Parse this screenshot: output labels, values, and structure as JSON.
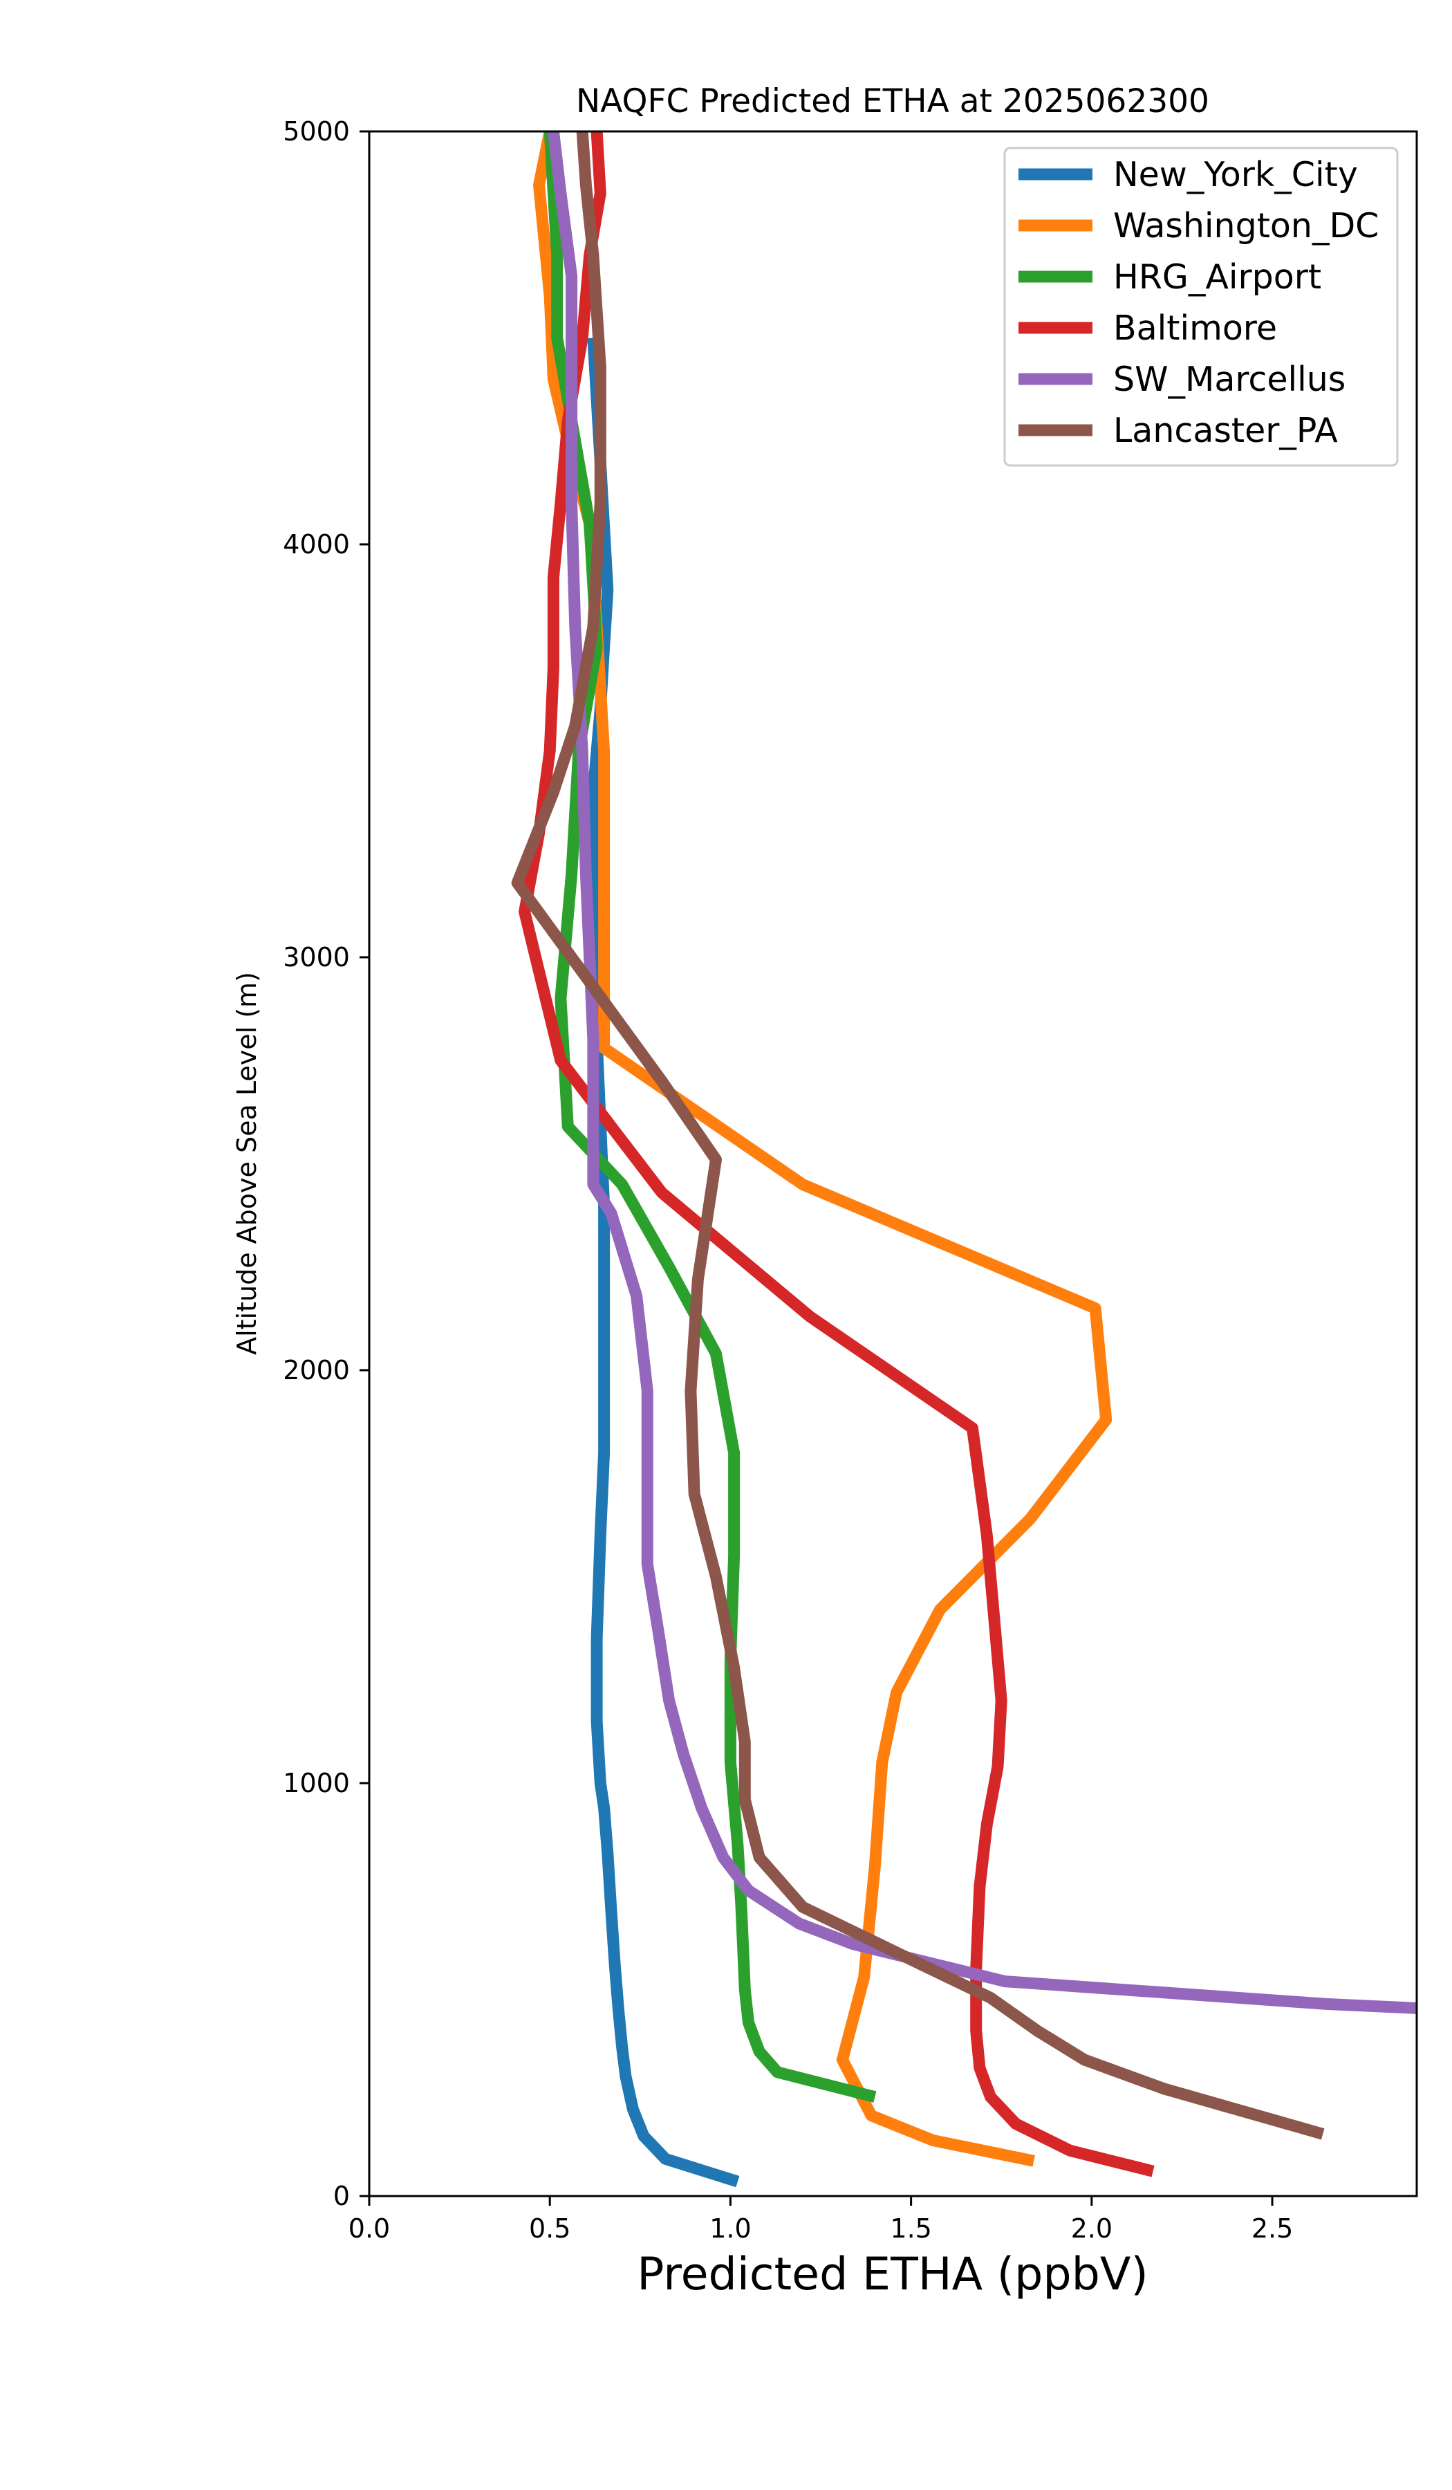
{
  "chart_data": {
    "type": "line",
    "title": "NAQFC Predicted ETHA at 2025062300",
    "xlabel": "Predicted ETHA (ppbV)",
    "ylabel": "Altitude Above Sea Level (m)",
    "xlim": [
      0,
      2.9
    ],
    "ylim": [
      0,
      5000
    ],
    "xticks": [
      "0.0",
      "0.5",
      "1.0",
      "1.5",
      "2.0",
      "2.5"
    ],
    "yticks": [
      "0",
      "1000",
      "2000",
      "3000",
      "4000",
      "5000"
    ],
    "grid": false,
    "legend_position": "top-right",
    "series": [
      {
        "name": "New_York_City",
        "color": "#1f77b4",
        "points": [
          [
            1.02,
            35
          ],
          [
            0.82,
            90
          ],
          [
            0.76,
            145
          ],
          [
            0.73,
            210
          ],
          [
            0.71,
            290
          ],
          [
            0.7,
            360
          ],
          [
            0.69,
            450
          ],
          [
            0.68,
            560
          ],
          [
            0.67,
            690
          ],
          [
            0.66,
            830
          ],
          [
            0.65,
            940
          ],
          [
            0.64,
            1000
          ],
          [
            0.63,
            1150
          ],
          [
            0.63,
            1350
          ],
          [
            0.64,
            1600
          ],
          [
            0.65,
            1800
          ],
          [
            0.65,
            2000
          ],
          [
            0.65,
            2200
          ],
          [
            0.65,
            2400
          ],
          [
            0.64,
            2600
          ],
          [
            0.63,
            2800
          ],
          [
            0.62,
            3000
          ],
          [
            0.62,
            3200
          ],
          [
            0.62,
            3400
          ],
          [
            0.64,
            3600
          ],
          [
            0.65,
            3750
          ],
          [
            0.66,
            3890
          ],
          [
            0.64,
            4200
          ],
          [
            0.62,
            4500
          ]
        ]
      },
      {
        "name": "Washington_DC",
        "color": "#ff7f0e",
        "points": [
          [
            1.84,
            85
          ],
          [
            1.56,
            135
          ],
          [
            1.39,
            195
          ],
          [
            1.31,
            330
          ],
          [
            1.37,
            530
          ],
          [
            1.4,
            800
          ],
          [
            1.42,
            1050
          ],
          [
            1.46,
            1220
          ],
          [
            1.58,
            1420
          ],
          [
            1.83,
            1640
          ],
          [
            2.04,
            1880
          ],
          [
            2.01,
            2150
          ],
          [
            1.2,
            2450
          ],
          [
            0.65,
            2780
          ],
          [
            0.65,
            3120
          ],
          [
            0.65,
            3500
          ],
          [
            0.63,
            3800
          ],
          [
            0.61,
            4050
          ],
          [
            0.55,
            4250
          ],
          [
            0.51,
            4400
          ],
          [
            0.5,
            4600
          ],
          [
            0.47,
            4870
          ],
          [
            0.5,
            5000
          ]
        ]
      },
      {
        "name": "HRG_Airport",
        "color": "#2ca02c",
        "points": [
          [
            1.4,
            240
          ],
          [
            1.13,
            300
          ],
          [
            1.08,
            350
          ],
          [
            1.05,
            420
          ],
          [
            1.04,
            500
          ],
          [
            1.03,
            700
          ],
          [
            1.02,
            850
          ],
          [
            1.0,
            1050
          ],
          [
            1.0,
            1300
          ],
          [
            1.01,
            1550
          ],
          [
            1.01,
            1800
          ],
          [
            0.96,
            2040
          ],
          [
            0.83,
            2250
          ],
          [
            0.7,
            2450
          ],
          [
            0.55,
            2590
          ],
          [
            0.53,
            2900
          ],
          [
            0.56,
            3200
          ],
          [
            0.58,
            3500
          ],
          [
            0.63,
            3750
          ],
          [
            0.61,
            4050
          ],
          [
            0.57,
            4250
          ],
          [
            0.52,
            4500
          ],
          [
            0.52,
            4700
          ],
          [
            0.5,
            5000
          ]
        ]
      },
      {
        "name": "Baltimore",
        "color": "#d62728",
        "points": [
          [
            2.17,
            60
          ],
          [
            1.94,
            110
          ],
          [
            1.79,
            175
          ],
          [
            1.72,
            240
          ],
          [
            1.69,
            310
          ],
          [
            1.68,
            400
          ],
          [
            1.68,
            550
          ],
          [
            1.69,
            750
          ],
          [
            1.71,
            900
          ],
          [
            1.74,
            1040
          ],
          [
            1.75,
            1200
          ],
          [
            1.73,
            1400
          ],
          [
            1.71,
            1600
          ],
          [
            1.67,
            1860
          ],
          [
            1.22,
            2130
          ],
          [
            0.81,
            2430
          ],
          [
            0.53,
            2750
          ],
          [
            0.43,
            3110
          ],
          [
            0.47,
            3300
          ],
          [
            0.5,
            3500
          ],
          [
            0.51,
            3700
          ],
          [
            0.51,
            3920
          ],
          [
            0.53,
            4100
          ],
          [
            0.55,
            4300
          ],
          [
            0.59,
            4500
          ],
          [
            0.61,
            4700
          ],
          [
            0.64,
            4850
          ],
          [
            0.63,
            5000
          ]
        ]
      },
      {
        "name": "SW_Marcellus",
        "color": "#9467bd",
        "points": [
          [
            2.9,
            455
          ],
          [
            2.65,
            465
          ],
          [
            1.76,
            520
          ],
          [
            1.55,
            565
          ],
          [
            1.34,
            610
          ],
          [
            1.19,
            660
          ],
          [
            1.05,
            740
          ],
          [
            0.98,
            820
          ],
          [
            0.92,
            940
          ],
          [
            0.87,
            1070
          ],
          [
            0.83,
            1200
          ],
          [
            0.8,
            1370
          ],
          [
            0.77,
            1530
          ],
          [
            0.77,
            1750
          ],
          [
            0.77,
            1950
          ],
          [
            0.74,
            2180
          ],
          [
            0.67,
            2380
          ],
          [
            0.62,
            2450
          ],
          [
            0.62,
            2600
          ],
          [
            0.62,
            2800
          ],
          [
            0.61,
            3000
          ],
          [
            0.6,
            3200
          ],
          [
            0.59,
            3500
          ],
          [
            0.57,
            3800
          ],
          [
            0.56,
            4100
          ],
          [
            0.56,
            4400
          ],
          [
            0.56,
            4650
          ],
          [
            0.53,
            4850
          ],
          [
            0.51,
            5000
          ]
        ]
      },
      {
        "name": "Lancaster_PA",
        "color": "#8c564b",
        "points": [
          [
            2.64,
            150
          ],
          [
            2.2,
            260
          ],
          [
            1.98,
            330
          ],
          [
            1.85,
            400
          ],
          [
            1.72,
            480
          ],
          [
            1.53,
            560
          ],
          [
            1.2,
            700
          ],
          [
            1.08,
            820
          ],
          [
            1.04,
            960
          ],
          [
            1.04,
            1100
          ],
          [
            1.01,
            1280
          ],
          [
            0.96,
            1500
          ],
          [
            0.9,
            1700
          ],
          [
            0.89,
            1950
          ],
          [
            0.91,
            2220
          ],
          [
            0.96,
            2510
          ],
          [
            0.81,
            2700
          ],
          [
            0.56,
            3000
          ],
          [
            0.41,
            3180
          ],
          [
            0.51,
            3400
          ],
          [
            0.57,
            3560
          ],
          [
            0.62,
            3800
          ],
          [
            0.64,
            4100
          ],
          [
            0.64,
            4430
          ],
          [
            0.62,
            4700
          ],
          [
            0.6,
            4870
          ],
          [
            0.59,
            5000
          ]
        ]
      }
    ]
  }
}
